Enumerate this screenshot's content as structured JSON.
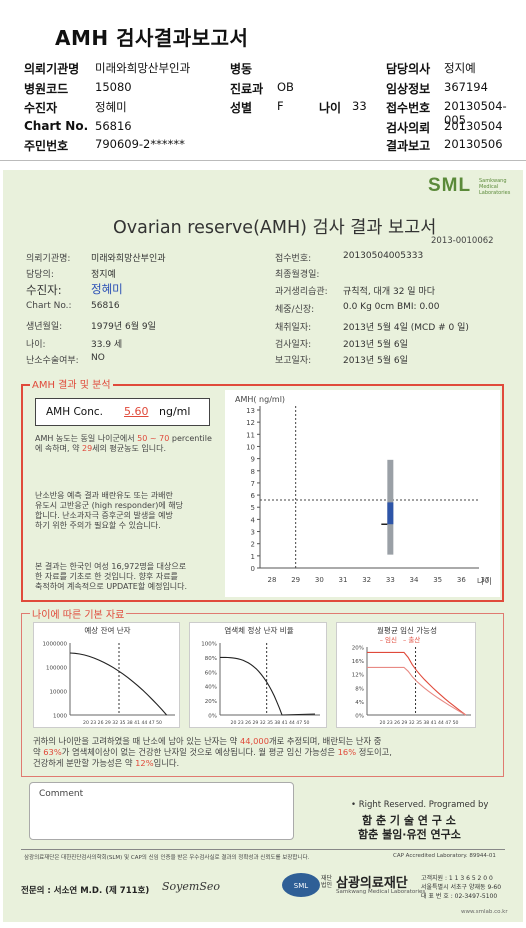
{
  "header": {
    "title": "AMH 검사결과보고서",
    "rows": [
      {
        "l1": "의뢰기관명",
        "v1": "미래와희망산부인과",
        "l2": "병동",
        "v2": "",
        "l3": "담당의사",
        "v3": "정지예"
      },
      {
        "l1": "병원코드",
        "v1": "15080",
        "l2": "진료과",
        "v2": "OB",
        "l3": "임상정보",
        "v3": "367194"
      },
      {
        "l1": "수진자",
        "v1": "정혜미",
        "l2": "성별",
        "v2": "F",
        "lage": "나이",
        "vage": "33",
        "l3": "접수번호",
        "v3": "20130504-005"
      },
      {
        "l1": "Chart No.",
        "v1": "56816",
        "l3": "검사의뢰",
        "v3": "20130504"
      },
      {
        "l1": "주민번호",
        "v1": "790609-2******",
        "l3": "결과보고",
        "v3": "20130506"
      }
    ]
  },
  "report": {
    "logo": "SML",
    "logo_sub": "Samkwang Medical Laboratories",
    "title": "Ovarian reserve(AMH) 검사 결과 보고서",
    "report_no": "2013-0010062",
    "left": [
      {
        "label": "의뢰기관명:",
        "value": "미래와희망산부인과"
      },
      {
        "label": "담당의:",
        "value": "정지예"
      },
      {
        "label": "수진자:",
        "value": "정혜미"
      },
      {
        "label": "Chart No.:",
        "value": "56816"
      },
      {
        "label": "생년월일:",
        "value": "1979년 6월 9일"
      },
      {
        "label": "나이:",
        "value": "33.9 세"
      },
      {
        "label": "난소수술여부:",
        "value": "NO"
      }
    ],
    "right": [
      {
        "label": "접수번호:",
        "value": "20130504005333"
      },
      {
        "label": "최종월경일:",
        "value": ""
      },
      {
        "label": "과거생리습관:",
        "value": "규칙적, 대개  32 일 마다"
      },
      {
        "label": "체중/신장:",
        "value": "0.0 Kg        0cm    BMI:  0.00"
      },
      {
        "label": "채취일자:",
        "value": "2013년 5월 4일     (MCD # 0 일)"
      },
      {
        "label": "검사일자:",
        "value": "2013년 5월 6일"
      },
      {
        "label": "보고일자:",
        "value": "2013년 5월 6일"
      }
    ],
    "section1_label": "AMH 결과 및 분석",
    "amh_label": "AMH Conc.",
    "amh_value": "5.60",
    "amh_unit": "ng/ml",
    "p1": [
      "AMH 농도는 동일 나이군에서 ",
      "50 ~ 70",
      " percentile에 속하며, 약 ",
      "29",
      "세의 평균농도 입니다."
    ],
    "p2": [
      "난소반응 예측 결과 배란유도 또는 과배란",
      "유도시 고반응군 (high responder)에 해당",
      "합니다. 난소과자극 증후군의 발생을 예방",
      "하기 위한 주의가 필요할 수 있습니다."
    ],
    "p3": [
      "본 결과는 한국인 여성 16,972명을 대상으로",
      "한 자료를 기초로 한 것입니다. 향후 자료를",
      "축적하여 계속적으로 UPDATE할 예정입니다."
    ],
    "section2_label": "나이에 따른 기본 자료",
    "bottom_text": [
      "귀하의 나이만을 고려하였을 때 난소에 남아 있는 난자는 약 ",
      "44,000",
      "개로 추정되며, 배란되는 난자 중",
      "약 ",
      "63%",
      "가 염색체이상이 없는 건강한 난자일 것으로 예상됩니다. 월 평균 임신 가능성은 ",
      "16%",
      " 정도이고,",
      "건강하게 분만할 가능성은 약 ",
      "12%",
      "입니다."
    ],
    "comment_label": "Comment",
    "rights": "• Right Reserved. Programed by",
    "org1": "함 춘 기 술 연 구 소",
    "org2": "함춘 불임·유전 연구소",
    "footnote": "삼광의료재단은 대한진단검사의학회(SLM) 및 CAP의 신임 인증을 받은 우수검사실로 결과의 정확성과 신뢰도를 보장합니다.",
    "cap": "CAP Accredited Laboratory. 89944-01",
    "specialist": "전문의 : 서소연 M.D. (제 711호)",
    "signature": "SoyemSeo",
    "foundation_small": "재단\n법인",
    "foundation": "삼광의료재단",
    "foundation_en": "Samkwang Medical Laboratories",
    "contact": [
      "고객지원 : 1 1 3 6 5 2 0 0",
      "서울특별시 서초구 양재동 9-60",
      "대 표 번 호 : 02-3497-5100"
    ],
    "url": "www.smlab.co.kr"
  },
  "chart_data": [
    {
      "type": "scatter",
      "title": "",
      "ylabel": "AMH( ng/ml)",
      "xlabel": "나이",
      "xlim": [
        28,
        37
      ],
      "ylim": [
        0,
        13
      ],
      "x_ticks": [
        28,
        29,
        30,
        31,
        32,
        33,
        34,
        35,
        36,
        37
      ],
      "y_ticks": [
        0,
        1,
        2,
        3,
        4,
        5,
        6,
        7,
        8,
        9,
        10,
        11,
        12,
        13
      ],
      "reference_range": {
        "x": 33,
        "low": 1.1,
        "high": 8.9,
        "p50_low": 3.6,
        "p50_high": 5.4
      },
      "patient": {
        "age": 33.9,
        "amh": 5.6
      },
      "guide_x": 29
    },
    {
      "type": "line",
      "title": "예상 잔여 난자",
      "x_ticks": [
        20,
        23,
        26,
        29,
        32,
        35,
        38,
        41,
        44,
        47,
        50
      ],
      "y_ticks_label": [
        "1000000",
        "100000",
        "10000",
        "1000"
      ],
      "scale": "log",
      "marker_x": 34
    },
    {
      "type": "line",
      "title": "염색체 정상 난자 비율",
      "x_ticks": [
        20,
        23,
        26,
        29,
        32,
        35,
        38,
        41,
        44,
        47,
        50
      ],
      "y_ticks_label": [
        "100%",
        "80%",
        "60%",
        "40%",
        "20%",
        "0%"
      ],
      "marker_x": 34
    },
    {
      "type": "line",
      "title": "월평균 임신 가능성",
      "legend": [
        "임신",
        "출산"
      ],
      "x_ticks": [
        20,
        23,
        26,
        29,
        32,
        35,
        38,
        41,
        44,
        47,
        50
      ],
      "y_ticks_label": [
        "20%",
        "16%",
        "12%",
        "8%",
        "4%",
        "0%"
      ],
      "marker_x": 34
    }
  ]
}
